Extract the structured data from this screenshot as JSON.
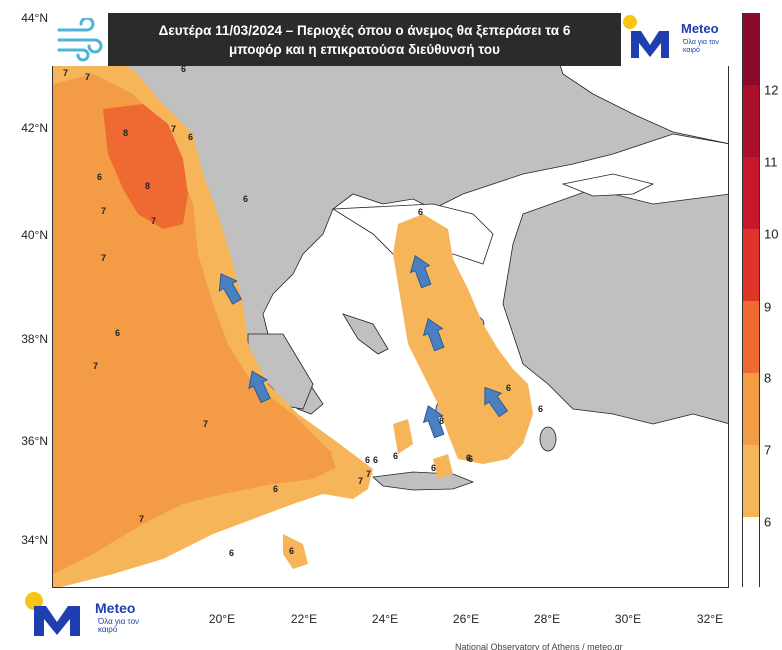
{
  "title": {
    "line1": "Δευτέρα 11/03/2024 – Περιοχές όπου ο άνεμος θα ξεπεράσει τα 6",
    "line2": "μποφόρ και η επικρατούσα διεύθυνσή του"
  },
  "logo": {
    "name": "Meteo",
    "tagline": "Όλα για τον καιρό"
  },
  "axes": {
    "lat_ticks": [
      "44°N",
      "42°N",
      "40°N",
      "38°N",
      "36°N",
      "34°N"
    ],
    "lon_ticks": [
      "20°E",
      "22°E",
      "24°E",
      "26°E",
      "28°E",
      "30°E",
      "32°E"
    ]
  },
  "colorbar": {
    "labels": [
      "12",
      "11",
      "10",
      "9",
      "8",
      "7",
      "6"
    ],
    "colors": [
      "#8b0a2a",
      "#a8102b",
      "#c8162a",
      "#e0332a",
      "#ef6a32",
      "#f39b45",
      "#f7b55a",
      "#ffffff"
    ]
  },
  "legend_levels": {
    "6": "#f7b55a",
    "7": "#f39b45",
    "8": "#ef6a32"
  },
  "land_color": "#c0c0c0",
  "arrow_color": "#4a7fc1",
  "contour_labels": [
    "7",
    "7",
    "6",
    "8",
    "7",
    "6",
    "6",
    "8",
    "6",
    "7",
    "7",
    "7",
    "6",
    "6",
    "7",
    "7",
    "7",
    "6",
    "6",
    "6",
    "6",
    "7",
    "6",
    "6",
    "6",
    "6",
    "6",
    "6",
    "7",
    "8",
    "6"
  ],
  "credit": "National Observatory of Athens / meteo.gr"
}
